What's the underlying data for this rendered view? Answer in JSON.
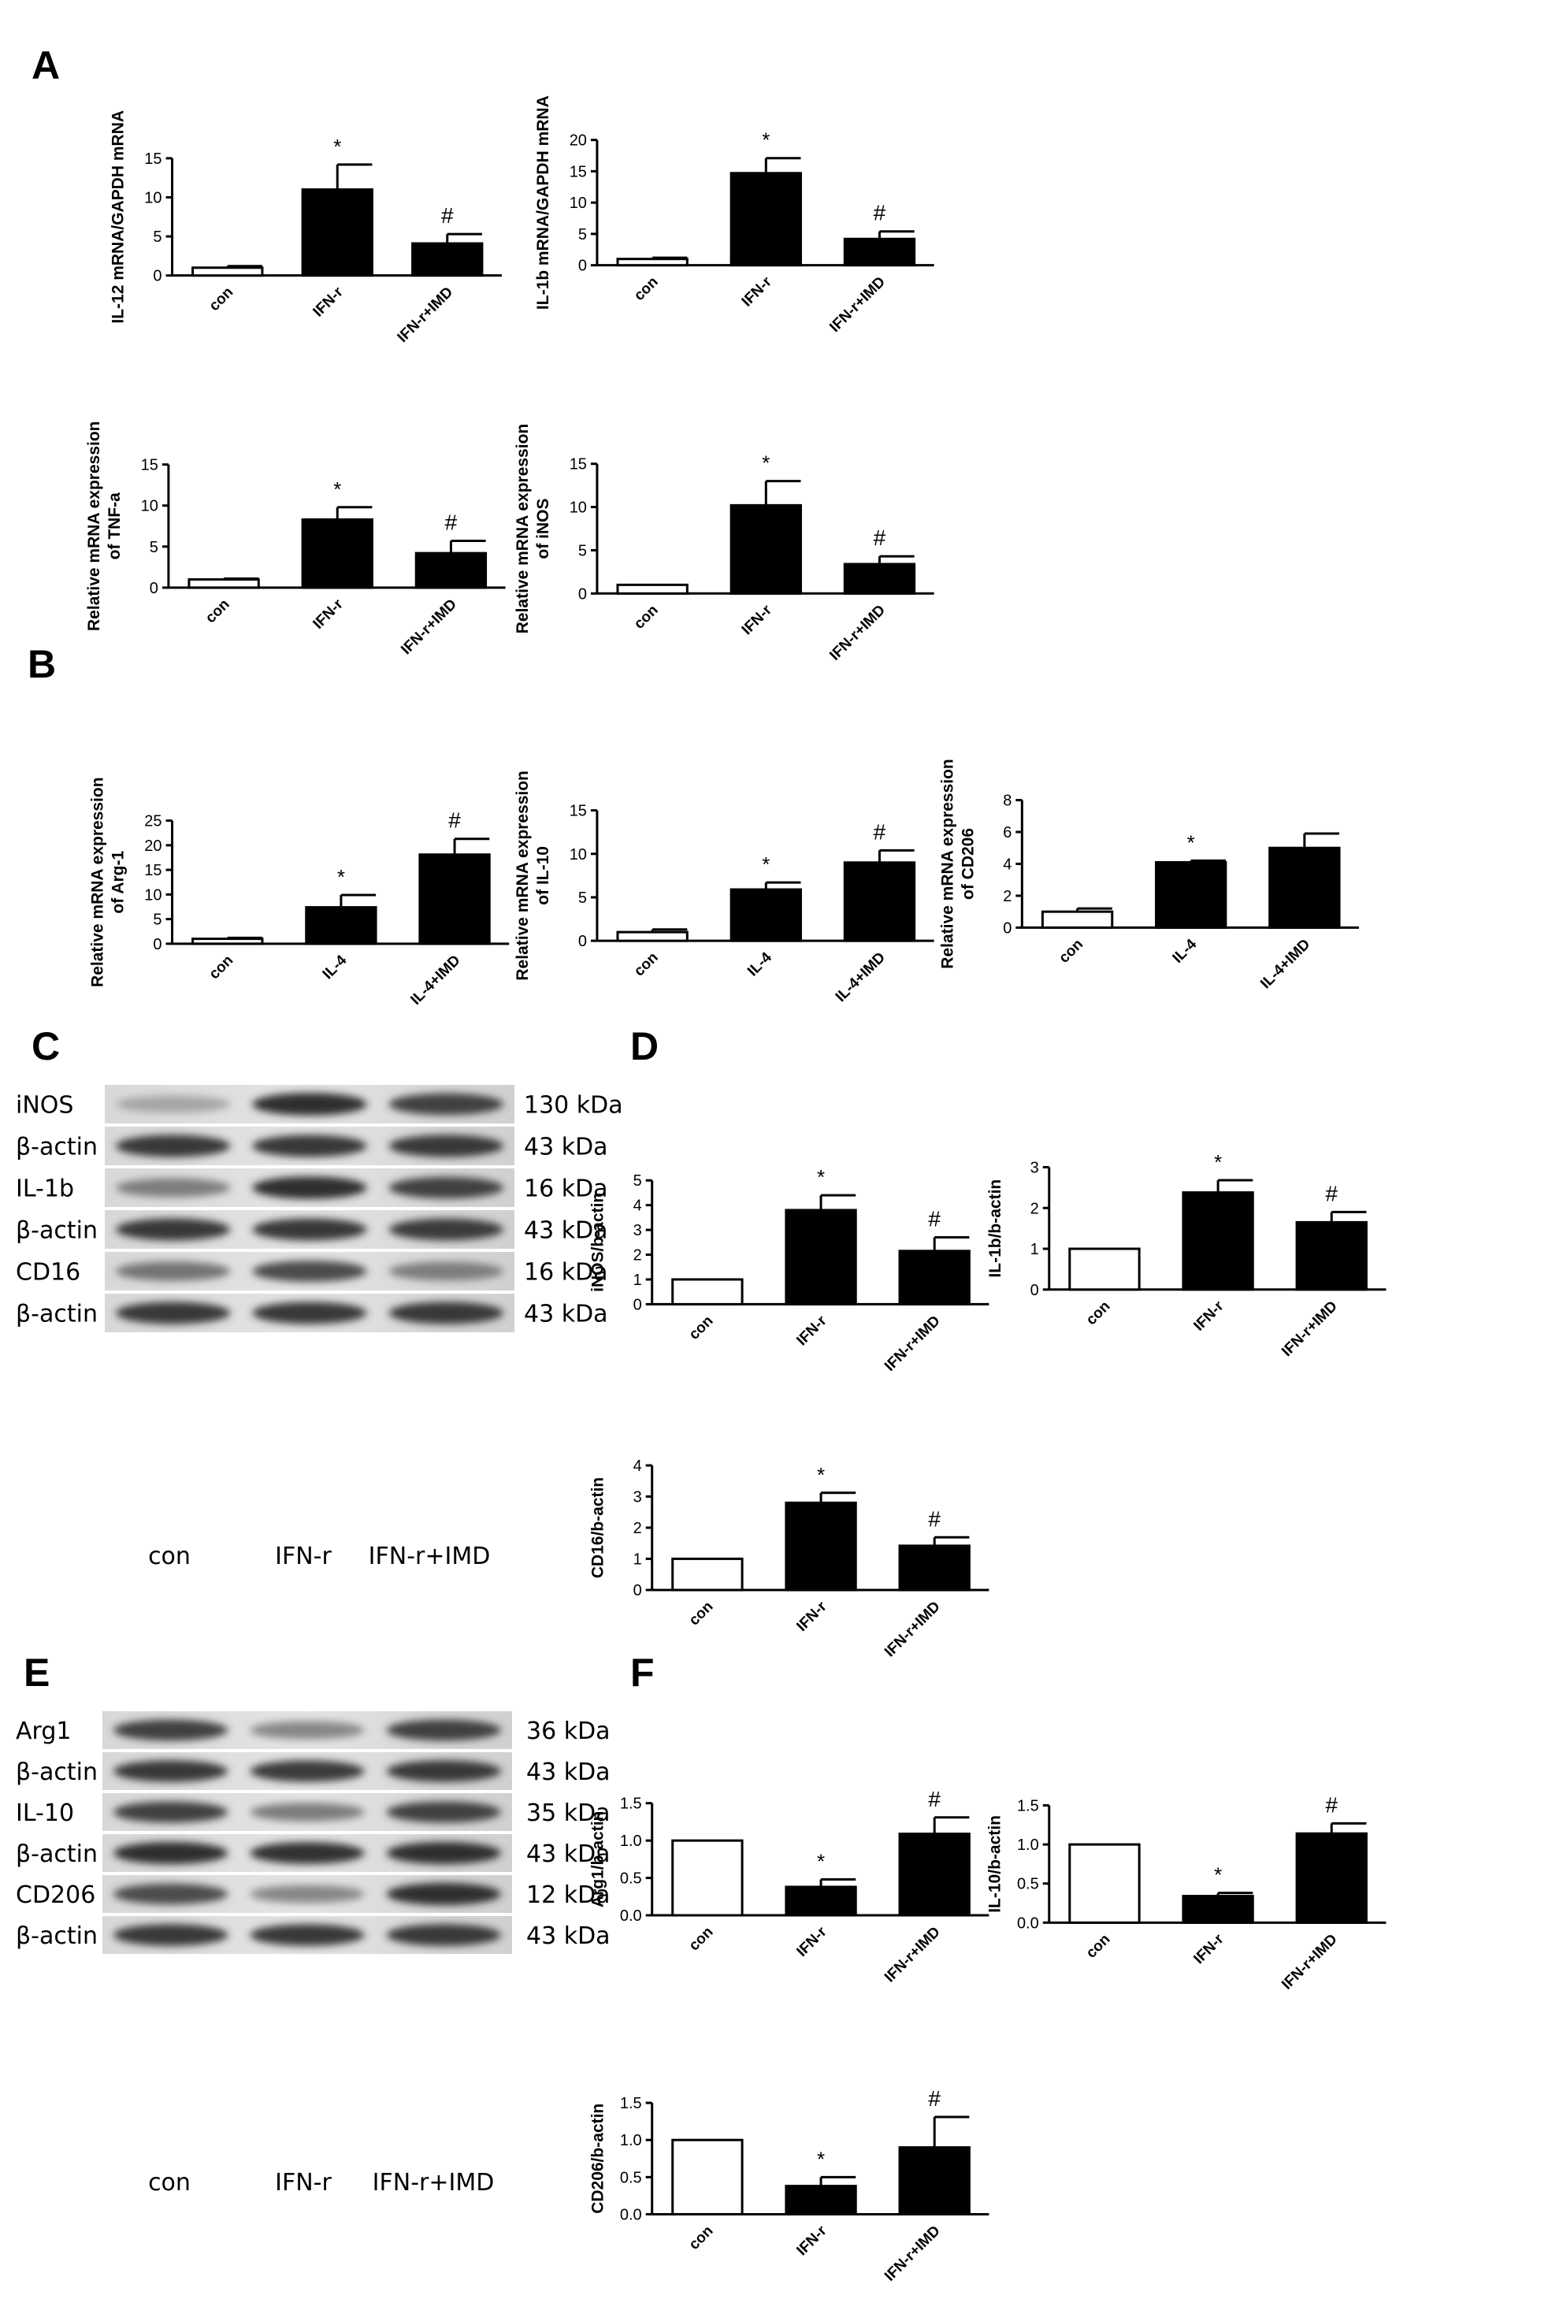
{
  "panel_labels": {
    "A": "A",
    "B": "B",
    "C": "C",
    "D": "D",
    "E": "E",
    "F": "F"
  },
  "chart_data": [
    {
      "id": "A1",
      "type": "bar",
      "categories": [
        "con",
        "IFN-r",
        "IFN-r+IMD"
      ],
      "values": [
        1.0,
        11.0,
        4.1
      ],
      "errors": [
        0.2,
        3.2,
        1.2
      ],
      "sig": [
        "",
        "*",
        "#"
      ],
      "ylabel": [
        "IL-12 mRNA/GAPDH mRNA"
      ],
      "ylim": [
        0,
        15
      ],
      "yticks": [
        0,
        5,
        10,
        15
      ]
    },
    {
      "id": "A2",
      "type": "bar",
      "categories": [
        "con",
        "IFN-r",
        "IFN-r+IMD"
      ],
      "values": [
        1.0,
        14.7,
        4.2
      ],
      "errors": [
        0.2,
        2.4,
        1.2
      ],
      "sig": [
        "",
        "*",
        "#"
      ],
      "ylabel": [
        "IL-1b mRNA/GAPDH mRNA"
      ],
      "ylim": [
        0,
        20
      ],
      "yticks": [
        0,
        5,
        10,
        15,
        20
      ]
    },
    {
      "id": "A3",
      "type": "bar",
      "categories": [
        "con",
        "IFN-r",
        "IFN-r+IMD"
      ],
      "values": [
        1.0,
        8.3,
        4.2
      ],
      "errors": [
        0.1,
        1.5,
        1.5
      ],
      "sig": [
        "",
        "*",
        "#"
      ],
      "ylabel": [
        "Relative mRNA expression",
        "of TNF-a"
      ],
      "ylim": [
        0,
        15
      ],
      "yticks": [
        0,
        5,
        10,
        15
      ]
    },
    {
      "id": "A4",
      "type": "bar",
      "categories": [
        "con",
        "IFN-r",
        "IFN-r+IMD"
      ],
      "values": [
        1.0,
        10.2,
        3.4
      ],
      "errors": [
        0.0,
        2.8,
        0.9
      ],
      "sig": [
        "",
        "*",
        "#"
      ],
      "ylabel": [
        "Relative mRNA expression",
        "of iNOS"
      ],
      "ylim": [
        0,
        15
      ],
      "yticks": [
        0,
        5,
        10,
        15
      ]
    },
    {
      "id": "B1",
      "type": "bar",
      "categories": [
        "con",
        "IL-4",
        "IL-4+IMD"
      ],
      "values": [
        1.0,
        7.4,
        18.1
      ],
      "errors": [
        0.2,
        2.5,
        3.2
      ],
      "sig": [
        "",
        "*",
        "#"
      ],
      "ylabel": [
        "Relative mRNA expression",
        "of Arg-1"
      ],
      "ylim": [
        0,
        25
      ],
      "yticks": [
        0,
        5,
        10,
        15,
        20,
        25
      ]
    },
    {
      "id": "B2",
      "type": "bar",
      "categories": [
        "con",
        "IL-4",
        "IL-4+IMD"
      ],
      "values": [
        1.0,
        5.9,
        9.0
      ],
      "errors": [
        0.3,
        0.8,
        1.4
      ],
      "sig": [
        "",
        "*",
        "#"
      ],
      "ylabel": [
        "Relative mRNA expression",
        "of IL-10"
      ],
      "ylim": [
        0,
        15
      ],
      "yticks": [
        0,
        5,
        10,
        15
      ]
    },
    {
      "id": "B3",
      "type": "bar",
      "categories": [
        "con",
        "IL-4",
        "IL-4+IMD"
      ],
      "values": [
        1.0,
        4.1,
        5.0
      ],
      "errors": [
        0.2,
        0.1,
        0.9
      ],
      "sig": [
        "",
        "*",
        ""
      ],
      "ylabel": [
        "Relative mRNA expression",
        "of CD206"
      ],
      "ylim": [
        0,
        8
      ],
      "yticks": [
        0,
        2,
        4,
        6,
        8
      ]
    },
    {
      "id": "D1",
      "type": "bar",
      "categories": [
        "con",
        "IFN-r",
        "IFN-r+IMD"
      ],
      "values": [
        1.0,
        3.8,
        2.15
      ],
      "errors": [
        0.0,
        0.6,
        0.55
      ],
      "sig": [
        "",
        "*",
        "#"
      ],
      "ylabel": [
        "iNOS/b-actin"
      ],
      "ylim": [
        0,
        5
      ],
      "yticks": [
        0,
        1,
        2,
        3,
        4,
        5
      ]
    },
    {
      "id": "D2",
      "type": "bar",
      "categories": [
        "con",
        "IFN-r",
        "IFN-r+IMD"
      ],
      "values": [
        1.0,
        2.38,
        1.65
      ],
      "errors": [
        0.0,
        0.3,
        0.25
      ],
      "sig": [
        "",
        "*",
        "#"
      ],
      "ylabel": [
        "IL-1b/b-actin"
      ],
      "ylim": [
        0,
        3
      ],
      "yticks": [
        0,
        1,
        2,
        3
      ]
    },
    {
      "id": "D3",
      "type": "bar",
      "categories": [
        "con",
        "IFN-r",
        "IFN-r+IMD"
      ],
      "values": [
        1.0,
        2.8,
        1.42
      ],
      "errors": [
        0.0,
        0.32,
        0.27
      ],
      "sig": [
        "",
        "*",
        "#"
      ],
      "ylabel": [
        "CD16/b-actin"
      ],
      "ylim": [
        0,
        4
      ],
      "yticks": [
        0,
        1,
        2,
        3,
        4
      ]
    },
    {
      "id": "F1",
      "type": "bar",
      "categories": [
        "con",
        "IFN-r",
        "IFN-r+IMD"
      ],
      "values": [
        1.0,
        0.38,
        1.09
      ],
      "errors": [
        0.0,
        0.1,
        0.22
      ],
      "sig": [
        "",
        "*",
        "#"
      ],
      "ylabel": [
        "Arg1/b-actin"
      ],
      "ylim": [
        0,
        1.5
      ],
      "yticks": [
        "0.0",
        "0.5",
        "1.0",
        "1.5"
      ]
    },
    {
      "id": "F2",
      "type": "bar",
      "categories": [
        "con",
        "IFN-r",
        "IFN-r+IMD"
      ],
      "values": [
        1.0,
        0.34,
        1.14
      ],
      "errors": [
        0.0,
        0.04,
        0.13
      ],
      "sig": [
        "",
        "*",
        "#"
      ],
      "ylabel": [
        "IL-10/b-actin"
      ],
      "ylim": [
        0,
        1.5
      ],
      "yticks": [
        "0.0",
        "0.5",
        "1.0",
        "1.5"
      ]
    },
    {
      "id": "F3",
      "type": "bar",
      "categories": [
        "con",
        "IFN-r",
        "IFN-r+IMD"
      ],
      "values": [
        1.0,
        0.38,
        0.9
      ],
      "errors": [
        0.0,
        0.12,
        0.41
      ],
      "sig": [
        "",
        "*",
        "#"
      ],
      "ylabel": [
        "CD206/b-actin"
      ],
      "ylim": [
        0,
        1.5
      ],
      "yticks": [
        "0.0",
        "0.5",
        "1.0",
        "1.5"
      ]
    }
  ],
  "blots": [
    {
      "id": "C",
      "rows": [
        {
          "name": "iNOS",
          "size": "130 kDa",
          "intensity": [
            0.35,
            0.95,
            0.85
          ]
        },
        {
          "name": "β-actin",
          "size": "43 kDa",
          "intensity": [
            0.9,
            0.9,
            0.9
          ]
        },
        {
          "name": "IL-1b",
          "size": "16 kDa",
          "intensity": [
            0.55,
            0.95,
            0.85
          ]
        },
        {
          "name": "β-actin",
          "size": "43 kDa",
          "intensity": [
            0.9,
            0.9,
            0.88
          ]
        },
        {
          "name": "CD16",
          "size": "16 kDa",
          "intensity": [
            0.6,
            0.8,
            0.55
          ]
        },
        {
          "name": "β-actin",
          "size": "43 kDa",
          "intensity": [
            0.9,
            0.9,
            0.9
          ]
        }
      ],
      "lanes": [
        "con",
        "IFN-r",
        "IFN-r+IMD"
      ]
    },
    {
      "id": "E",
      "rows": [
        {
          "name": "Arg1",
          "size": "36 kDa",
          "intensity": [
            0.85,
            0.5,
            0.85
          ]
        },
        {
          "name": "β-actin",
          "size": "43 kDa",
          "intensity": [
            0.9,
            0.88,
            0.9
          ]
        },
        {
          "name": "IL-10",
          "size": "35 kDa",
          "intensity": [
            0.85,
            0.55,
            0.85
          ]
        },
        {
          "name": "β-actin",
          "size": "43 kDa",
          "intensity": [
            0.95,
            0.92,
            0.95
          ]
        },
        {
          "name": "CD206",
          "size": "12 kDa",
          "intensity": [
            0.8,
            0.5,
            0.95
          ]
        },
        {
          "name": "β-actin",
          "size": "43 kDa",
          "intensity": [
            0.9,
            0.9,
            0.9
          ]
        }
      ],
      "lanes": [
        "con",
        "IFN-r",
        "IFN-r+IMD"
      ]
    }
  ]
}
